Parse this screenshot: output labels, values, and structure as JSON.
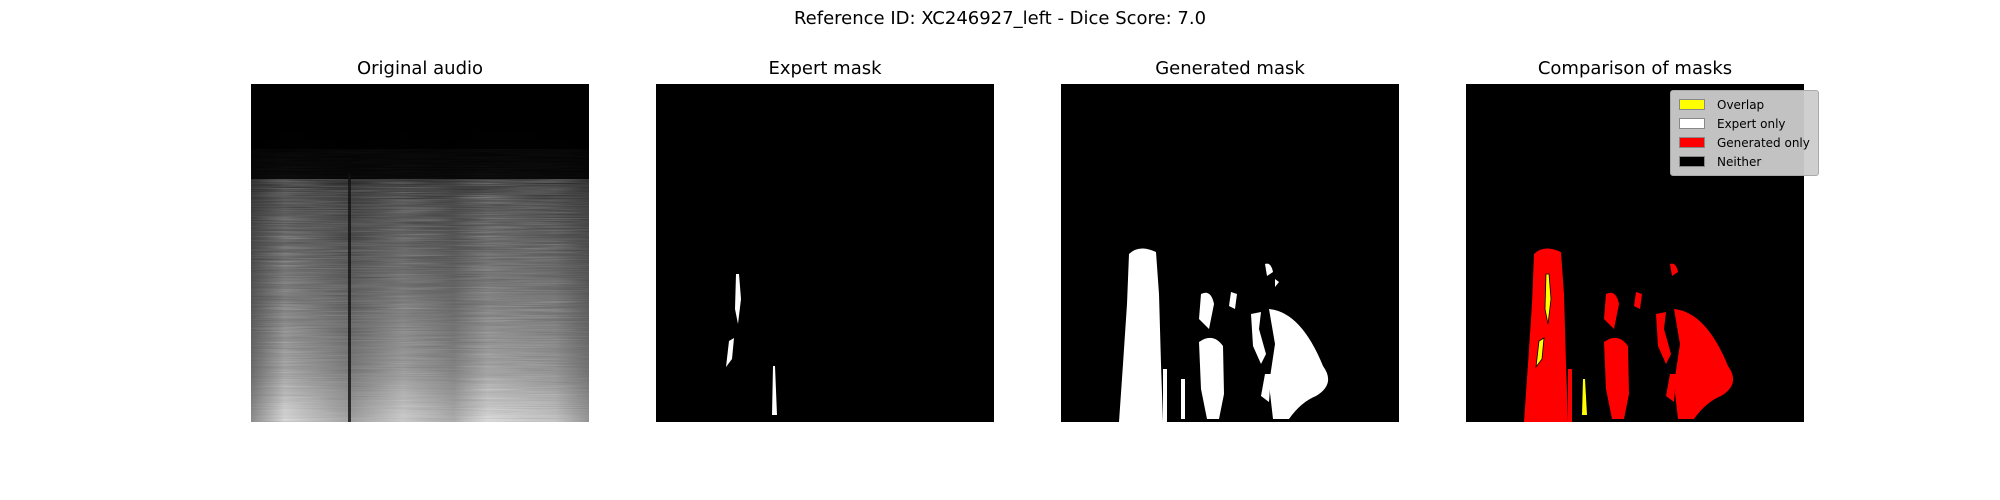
{
  "chart_data": {
    "type": "image-grid",
    "suptitle": "Reference ID: XC246927_left - Dice Score: 7.0",
    "panels": [
      {
        "title": "Original audio",
        "kind": "spectrogram"
      },
      {
        "title": "Expert mask",
        "kind": "binary-mask"
      },
      {
        "title": "Generated mask",
        "kind": "binary-mask"
      },
      {
        "title": "Comparison of masks",
        "kind": "comparison-mask"
      }
    ],
    "legend": {
      "placement": "top-right",
      "entries": [
        {
          "label": "Overlap",
          "color": "#ffff00"
        },
        {
          "label": "Expert only",
          "color": "#ffffff"
        },
        {
          "label": "Generated only",
          "color": "#ff0000"
        },
        {
          "label": "Neither",
          "color": "#000000"
        }
      ]
    }
  }
}
